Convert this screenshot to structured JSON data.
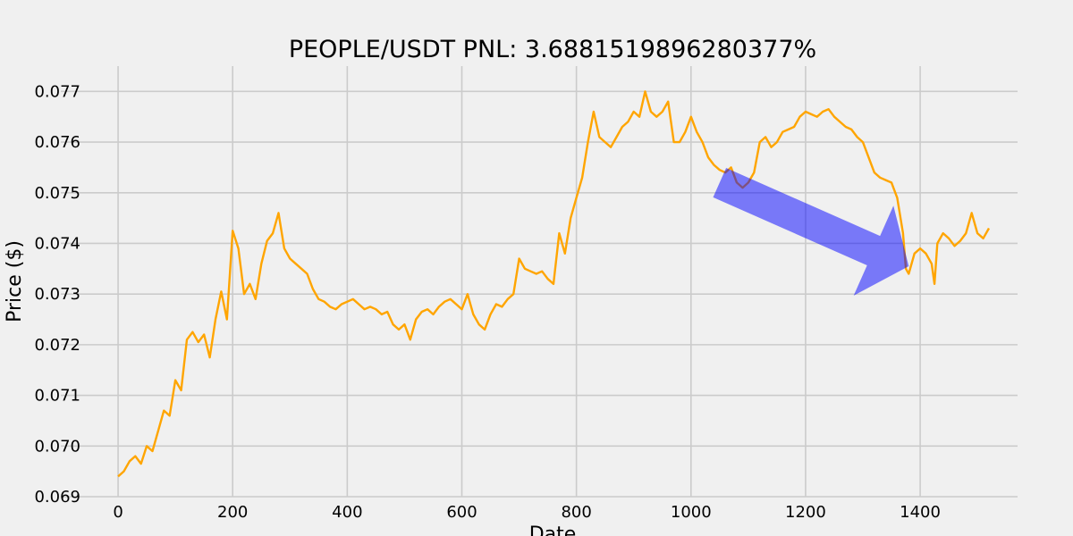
{
  "chart_data": {
    "type": "line",
    "title": "PEOPLE/USDT  PNL: 3.6881519896280377%",
    "xlabel": "Date",
    "ylabel": "Price ($)",
    "xlim": [
      -100,
      1570
    ],
    "ylim": [
      0.069,
      0.0775
    ],
    "x_ticks": [
      0,
      200,
      400,
      600,
      800,
      1000,
      1200,
      1400
    ],
    "y_ticks": [
      0.069,
      0.07,
      0.071,
      0.072,
      0.073,
      0.074,
      0.075,
      0.076,
      0.077
    ],
    "grid": true,
    "line_color": "#ffa500",
    "series": [
      {
        "color": "#ffa500",
        "points": [
          [
            0,
            0.0694
          ],
          [
            10,
            0.0695
          ],
          [
            20,
            0.0697
          ],
          [
            30,
            0.0698
          ],
          [
            40,
            0.06965
          ],
          [
            50,
            0.07
          ],
          [
            60,
            0.0699
          ],
          [
            70,
            0.0703
          ],
          [
            80,
            0.0707
          ],
          [
            90,
            0.0706
          ],
          [
            100,
            0.0713
          ],
          [
            110,
            0.0711
          ],
          [
            120,
            0.0721
          ],
          [
            130,
            0.07225
          ],
          [
            140,
            0.07205
          ],
          [
            150,
            0.0722
          ],
          [
            160,
            0.07175
          ],
          [
            170,
            0.0725
          ],
          [
            180,
            0.07305
          ],
          [
            190,
            0.0725
          ],
          [
            200,
            0.07425
          ],
          [
            210,
            0.0739
          ],
          [
            220,
            0.073
          ],
          [
            230,
            0.0732
          ],
          [
            240,
            0.0729
          ],
          [
            250,
            0.0736
          ],
          [
            260,
            0.07405
          ],
          [
            270,
            0.0742
          ],
          [
            280,
            0.0746
          ],
          [
            290,
            0.0739
          ],
          [
            300,
            0.0737
          ],
          [
            310,
            0.0736
          ],
          [
            320,
            0.0735
          ],
          [
            330,
            0.0734
          ],
          [
            340,
            0.0731
          ],
          [
            350,
            0.0729
          ],
          [
            360,
            0.07285
          ],
          [
            370,
            0.07275
          ],
          [
            380,
            0.0727
          ],
          [
            390,
            0.0728
          ],
          [
            400,
            0.07285
          ],
          [
            410,
            0.0729
          ],
          [
            420,
            0.0728
          ],
          [
            430,
            0.0727
          ],
          [
            440,
            0.07275
          ],
          [
            450,
            0.0727
          ],
          [
            460,
            0.0726
          ],
          [
            470,
            0.07265
          ],
          [
            480,
            0.0724
          ],
          [
            490,
            0.0723
          ],
          [
            500,
            0.0724
          ],
          [
            510,
            0.0721
          ],
          [
            520,
            0.0725
          ],
          [
            530,
            0.07265
          ],
          [
            540,
            0.0727
          ],
          [
            550,
            0.0726
          ],
          [
            560,
            0.07275
          ],
          [
            570,
            0.07285
          ],
          [
            580,
            0.0729
          ],
          [
            590,
            0.0728
          ],
          [
            600,
            0.0727
          ],
          [
            610,
            0.073
          ],
          [
            620,
            0.0726
          ],
          [
            630,
            0.0724
          ],
          [
            640,
            0.0723
          ],
          [
            650,
            0.0726
          ],
          [
            660,
            0.0728
          ],
          [
            670,
            0.07275
          ],
          [
            680,
            0.0729
          ],
          [
            690,
            0.073
          ],
          [
            700,
            0.0737
          ],
          [
            710,
            0.0735
          ],
          [
            720,
            0.07345
          ],
          [
            730,
            0.0734
          ],
          [
            740,
            0.07345
          ],
          [
            750,
            0.0733
          ],
          [
            760,
            0.0732
          ],
          [
            770,
            0.0742
          ],
          [
            780,
            0.0738
          ],
          [
            790,
            0.0745
          ],
          [
            800,
            0.0749
          ],
          [
            810,
            0.0753
          ],
          [
            820,
            0.076
          ],
          [
            830,
            0.0766
          ],
          [
            840,
            0.0761
          ],
          [
            850,
            0.076
          ],
          [
            860,
            0.0759
          ],
          [
            870,
            0.0761
          ],
          [
            880,
            0.0763
          ],
          [
            890,
            0.0764
          ],
          [
            900,
            0.0766
          ],
          [
            910,
            0.0765
          ],
          [
            920,
            0.077
          ],
          [
            930,
            0.0766
          ],
          [
            940,
            0.0765
          ],
          [
            950,
            0.0766
          ],
          [
            960,
            0.0768
          ],
          [
            970,
            0.076
          ],
          [
            980,
            0.076
          ],
          [
            990,
            0.0762
          ],
          [
            1000,
            0.0765
          ],
          [
            1010,
            0.0762
          ],
          [
            1020,
            0.076
          ],
          [
            1030,
            0.0757
          ],
          [
            1040,
            0.07555
          ],
          [
            1050,
            0.07545
          ],
          [
            1060,
            0.0754
          ],
          [
            1070,
            0.0755
          ],
          [
            1080,
            0.0752
          ],
          [
            1090,
            0.0751
          ],
          [
            1100,
            0.0752
          ],
          [
            1110,
            0.0754
          ],
          [
            1120,
            0.076
          ],
          [
            1130,
            0.0761
          ],
          [
            1140,
            0.0759
          ],
          [
            1150,
            0.076
          ],
          [
            1160,
            0.0762
          ],
          [
            1170,
            0.07625
          ],
          [
            1180,
            0.0763
          ],
          [
            1190,
            0.0765
          ],
          [
            1200,
            0.0766
          ],
          [
            1210,
            0.07655
          ],
          [
            1220,
            0.0765
          ],
          [
            1230,
            0.0766
          ],
          [
            1240,
            0.07665
          ],
          [
            1250,
            0.0765
          ],
          [
            1260,
            0.0764
          ],
          [
            1270,
            0.0763
          ],
          [
            1280,
            0.07625
          ],
          [
            1290,
            0.0761
          ],
          [
            1300,
            0.076
          ],
          [
            1310,
            0.0757
          ],
          [
            1320,
            0.0754
          ],
          [
            1330,
            0.0753
          ],
          [
            1340,
            0.07525
          ],
          [
            1350,
            0.0752
          ],
          [
            1360,
            0.0749
          ],
          [
            1370,
            0.0742
          ],
          [
            1375,
            0.0735
          ],
          [
            1380,
            0.0734
          ],
          [
            1390,
            0.0738
          ],
          [
            1400,
            0.0739
          ],
          [
            1410,
            0.0738
          ],
          [
            1420,
            0.0736
          ],
          [
            1425,
            0.0732
          ],
          [
            1430,
            0.074
          ],
          [
            1440,
            0.0742
          ],
          [
            1450,
            0.0741
          ],
          [
            1460,
            0.07395
          ],
          [
            1470,
            0.07405
          ],
          [
            1480,
            0.0742
          ],
          [
            1490,
            0.0746
          ],
          [
            1500,
            0.0742
          ],
          [
            1510,
            0.0741
          ],
          [
            1520,
            0.0743
          ]
        ]
      }
    ],
    "annotation": {
      "type": "arrow",
      "color": "#0000ff",
      "opacity": 0.5,
      "from": [
        1050,
        0.0752
      ],
      "to": [
        1380,
        0.07355
      ]
    }
  }
}
